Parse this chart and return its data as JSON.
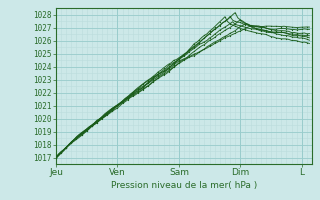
{
  "title": "",
  "xlabel": "Pression niveau de la mer( hPa )",
  "ylabel": "",
  "ylim": [
    1016.5,
    1028.5
  ],
  "yticks": [
    1017,
    1018,
    1019,
    1020,
    1021,
    1022,
    1023,
    1024,
    1025,
    1026,
    1027,
    1028
  ],
  "bg_color": "#cce8e8",
  "grid_minor_color": "#bbdddd",
  "grid_major_color": "#99cccc",
  "line_color": "#1a5c1a",
  "x_day_labels": [
    "Jeu",
    "Ven",
    "Sam",
    "Dim",
    "L"
  ],
  "x_day_positions": [
    0,
    24,
    48,
    72,
    96
  ],
  "xlim": [
    0,
    100
  ],
  "n_hours": 100,
  "label_color": "#2a6c2a",
  "spine_color": "#2a6c2a"
}
